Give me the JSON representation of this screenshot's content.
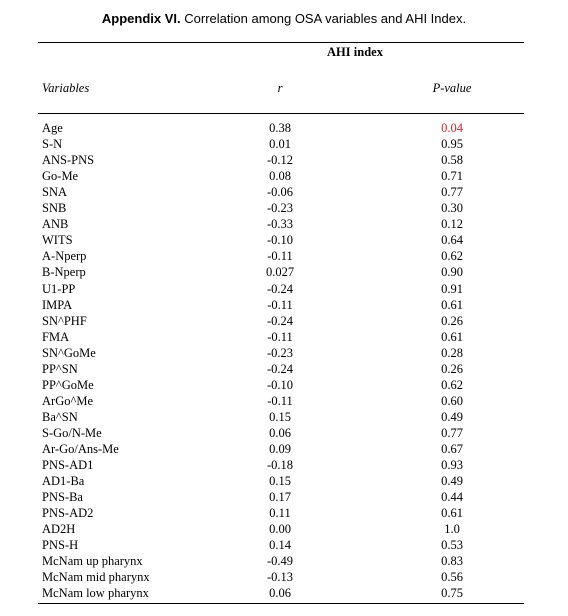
{
  "header": {
    "label": "Appendix VI.",
    "title": "Correlation among OSA variables and AHI Index."
  },
  "table": {
    "group_header": "AHI index",
    "columns": [
      "Variables",
      "r",
      "P-value"
    ],
    "rows": [
      [
        "Age",
        "0.38",
        "0.04"
      ],
      [
        "S-N",
        "0.01",
        "0.95"
      ],
      [
        "ANS-PNS",
        "-0.12",
        "0.58"
      ],
      [
        "Go-Me",
        "0.08",
        "0.71"
      ],
      [
        "SNA",
        "-0.06",
        "0.77"
      ],
      [
        "SNB",
        "-0.23",
        "0.30"
      ],
      [
        "ANB",
        "-0.33",
        "0.12"
      ],
      [
        "WITS",
        "-0.10",
        "0.64"
      ],
      [
        "A-Nperp",
        "-0.11",
        "0.62"
      ],
      [
        "B-Nperp",
        "0.027",
        "0.90"
      ],
      [
        "U1-PP",
        "-0.24",
        "0.91"
      ],
      [
        "IMPA",
        "-0.11",
        "0.61"
      ],
      [
        "SN^PHF",
        "-0.24",
        "0.26"
      ],
      [
        "FMA",
        "-0.11",
        "0.61"
      ],
      [
        "SN^GoMe",
        "-0.23",
        "0.28"
      ],
      [
        "PP^SN",
        "-0.24",
        "0.26"
      ],
      [
        "PP^GoMe",
        "-0.10",
        "0.62"
      ],
      [
        "ArGo^Me",
        "-0.11",
        "0.60"
      ],
      [
        "Ba^SN",
        "0.15",
        "0.49"
      ],
      [
        "S-Go/N-Me",
        "0.06",
        "0.77"
      ],
      [
        "Ar-Go/Ans-Me",
        "0.09",
        "0.67"
      ],
      [
        "PNS-AD1",
        "-0.18",
        "0.93"
      ],
      [
        "AD1-Ba",
        "0.15",
        "0.49"
      ],
      [
        "PNS-Ba",
        "0.17",
        "0.44"
      ],
      [
        "PNS-AD2",
        "0.11",
        "0.61"
      ],
      [
        "AD2H",
        "0.00",
        "1.0"
      ],
      [
        "PNS-H",
        "0.14",
        "0.53"
      ],
      [
        "McNam up pharynx",
        "-0.49",
        "0.83"
      ],
      [
        "McNam mid pharynx",
        "-0.13",
        "0.56"
      ],
      [
        "McNam low pharynx",
        "0.06",
        "0.75"
      ]
    ]
  }
}
